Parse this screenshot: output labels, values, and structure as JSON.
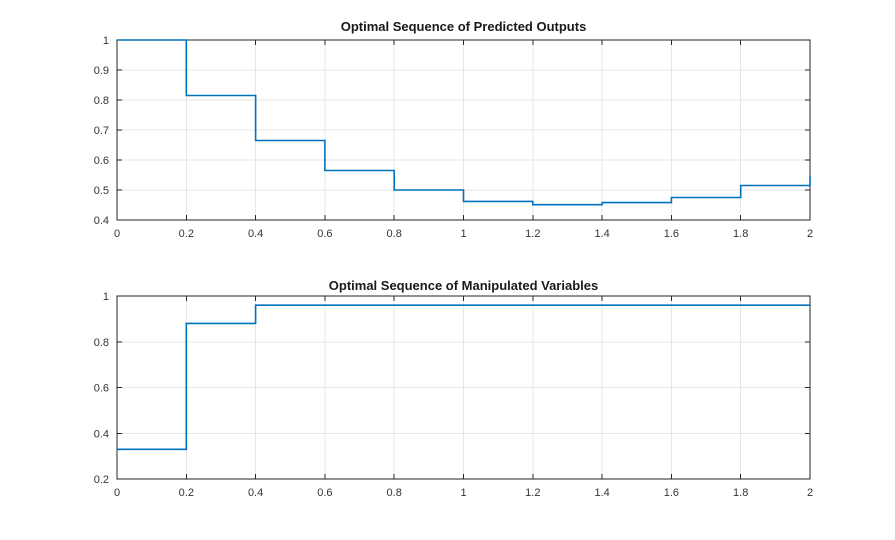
{
  "figure": {
    "background": "#ffffff",
    "axis_color": "#262626",
    "grid_color": "#e6e6e6",
    "tick_label_color": "#333333",
    "title_color": "#1a1a1a"
  },
  "chart_data": [
    {
      "type": "line",
      "style": "stairs",
      "title": "Optimal Sequence of Predicted Outputs",
      "x": [
        0,
        0.2,
        0.4,
        0.6,
        0.8,
        1.0,
        1.2,
        1.4,
        1.6,
        1.8,
        2.0
      ],
      "values": [
        1.0,
        0.815,
        0.665,
        0.565,
        0.5,
        0.462,
        0.451,
        0.458,
        0.475,
        0.515,
        0.545
      ],
      "xlim": [
        0,
        2
      ],
      "ylim": [
        0.4,
        1
      ],
      "xticks": [
        0,
        0.2,
        0.4,
        0.6,
        0.8,
        1,
        1.2,
        1.4,
        1.6,
        1.8,
        2
      ],
      "xtick_labels": [
        "0",
        "0.2",
        "0.4",
        "0.6",
        "0.8",
        "1",
        "1.2",
        "1.4",
        "1.6",
        "1.8",
        "2"
      ],
      "yticks": [
        0.4,
        0.5,
        0.6,
        0.7,
        0.8,
        0.9,
        1
      ],
      "ytick_labels": [
        "0.4",
        "0.5",
        "0.6",
        "0.7",
        "0.8",
        "0.9",
        "1"
      ],
      "grid": true,
      "legend_position": "none",
      "line_color": "#0072BD"
    },
    {
      "type": "line",
      "style": "stairs",
      "title": "Optimal Sequence of Manipulated Variables",
      "x": [
        0,
        0.2,
        0.4,
        0.6,
        0.8,
        1.0,
        1.2,
        1.4,
        1.6,
        1.8,
        2.0
      ],
      "values": [
        0.33,
        0.88,
        0.96,
        0.96,
        0.96,
        0.96,
        0.96,
        0.96,
        0.96,
        0.96,
        0.96
      ],
      "xlim": [
        0,
        2
      ],
      "ylim": [
        0.2,
        1
      ],
      "xticks": [
        0,
        0.2,
        0.4,
        0.6,
        0.8,
        1,
        1.2,
        1.4,
        1.6,
        1.8,
        2
      ],
      "xtick_labels": [
        "0",
        "0.2",
        "0.4",
        "0.6",
        "0.8",
        "1",
        "1.2",
        "1.4",
        "1.6",
        "1.8",
        "2"
      ],
      "yticks": [
        0.2,
        0.4,
        0.6,
        0.8,
        1
      ],
      "ytick_labels": [
        "0.2",
        "0.4",
        "0.6",
        "0.8",
        "1"
      ],
      "grid": true,
      "legend_position": "none",
      "line_color": "#0072BD"
    }
  ]
}
